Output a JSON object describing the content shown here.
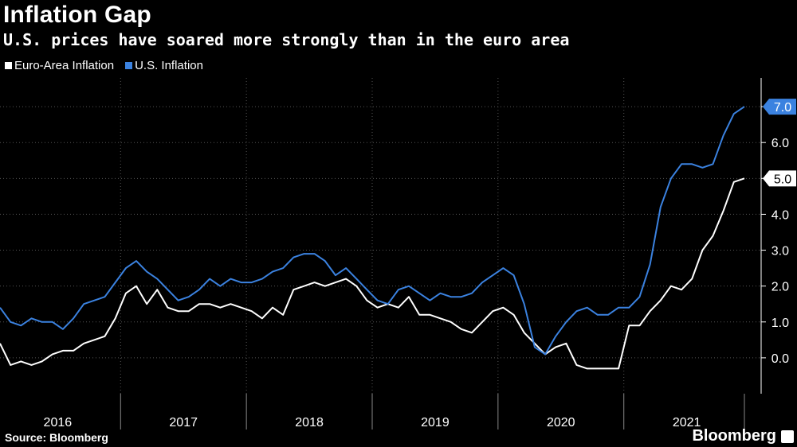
{
  "header": {
    "title": "Inflation Gap",
    "subtitle": "U.S. prices have soared more strongly than in the euro area"
  },
  "footer": {
    "source": "Source: Bloomberg",
    "brand": "Bloomberg"
  },
  "colors": {
    "background": "#000000",
    "euro": "#ffffff",
    "us": "#3b82e0",
    "grid": "#555555",
    "text": "#ffffff"
  },
  "chart_data": {
    "type": "line",
    "title": "Inflation Gap",
    "subtitle": "U.S. prices have soared more strongly than in the euro area",
    "x_start": "2016-01",
    "x_end": "2021-12",
    "x_tick_labels": [
      "2016",
      "2017",
      "2018",
      "2019",
      "2020",
      "2021"
    ],
    "y_ticks": [
      0.0,
      1.0,
      2.0,
      3.0,
      4.0,
      5.0,
      6.0,
      7.0
    ],
    "y_tick_labels": [
      "0.0",
      "1.0",
      "2.0",
      "3.0",
      "4.0",
      "5.0",
      "6.0",
      "7.0"
    ],
    "ylim": [
      -1.0,
      7.8
    ],
    "grid": true,
    "legend_position": "top-left",
    "series": [
      {
        "name": "Euro-Area Inflation",
        "color": "#ffffff",
        "end_label": "5.0",
        "values": [
          0.4,
          -0.2,
          -0.1,
          -0.2,
          -0.1,
          0.1,
          0.2,
          0.2,
          0.4,
          0.5,
          0.6,
          1.1,
          1.8,
          2.0,
          1.5,
          1.9,
          1.4,
          1.3,
          1.3,
          1.5,
          1.5,
          1.4,
          1.5,
          1.4,
          1.3,
          1.1,
          1.4,
          1.2,
          1.9,
          2.0,
          2.1,
          2.0,
          2.1,
          2.2,
          2.0,
          1.6,
          1.4,
          1.5,
          1.4,
          1.7,
          1.2,
          1.2,
          1.1,
          1.0,
          0.8,
          0.7,
          1.0,
          1.3,
          1.4,
          1.2,
          0.7,
          0.4,
          0.1,
          0.3,
          0.4,
          -0.2,
          -0.3,
          -0.3,
          -0.3,
          -0.3,
          0.9,
          0.9,
          1.3,
          1.6,
          2.0,
          1.9,
          2.2,
          3.0,
          3.4,
          4.1,
          4.9,
          5.0
        ]
      },
      {
        "name": "U.S. Inflation",
        "color": "#3b82e0",
        "end_label": "7.0",
        "values": [
          1.4,
          1.0,
          0.9,
          1.1,
          1.0,
          1.0,
          0.8,
          1.1,
          1.5,
          1.6,
          1.7,
          2.1,
          2.5,
          2.7,
          2.4,
          2.2,
          1.9,
          1.6,
          1.7,
          1.9,
          2.2,
          2.0,
          2.2,
          2.1,
          2.1,
          2.2,
          2.4,
          2.5,
          2.8,
          2.9,
          2.9,
          2.7,
          2.3,
          2.5,
          2.2,
          1.9,
          1.6,
          1.5,
          1.9,
          2.0,
          1.8,
          1.6,
          1.8,
          1.7,
          1.7,
          1.8,
          2.1,
          2.3,
          2.5,
          2.3,
          1.5,
          0.3,
          0.1,
          0.6,
          1.0,
          1.3,
          1.4,
          1.2,
          1.2,
          1.4,
          1.4,
          1.7,
          2.6,
          4.2,
          5.0,
          5.4,
          5.4,
          5.3,
          5.4,
          6.2,
          6.8,
          7.0
        ]
      }
    ]
  }
}
